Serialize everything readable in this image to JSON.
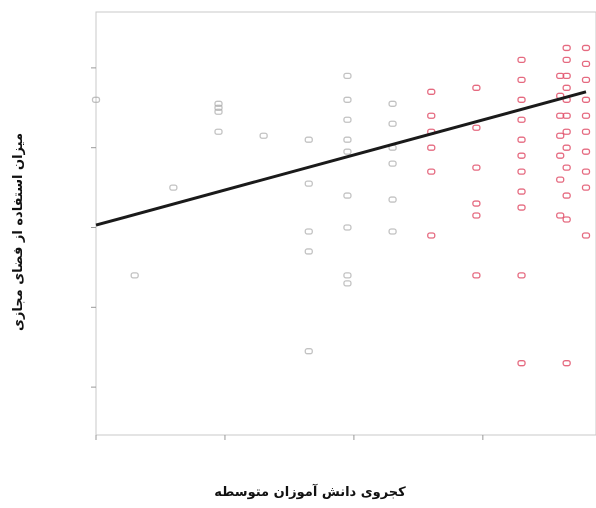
{
  "chart_data": {
    "type": "scatter",
    "title": "",
    "xlabel": "کجروی دانش آموزان متوسطه",
    "ylabel": "میزان استفاده از فضای مجازی",
    "xlim": [
      1,
      4.8
    ],
    "ylim": [
      1,
      6.2
    ],
    "x_ticks": [
      "",
      "",
      "",
      "",
      "",
      ""
    ],
    "y_ticks": [
      "",
      "",
      "",
      "",
      "",
      ""
    ],
    "grid": false,
    "colors": {
      "point_low": "#a8a8a8",
      "point_high": "#e0506a",
      "line": "#1a1a1a"
    },
    "fit_line": {
      "x": [
        1,
        4.8
      ],
      "y": [
        3.63,
        5.3
      ]
    },
    "points": [
      {
        "x": 1.0,
        "y": 5.2
      },
      {
        "x": 1.3,
        "y": 3.0
      },
      {
        "x": 1.6,
        "y": 4.1
      },
      {
        "x": 1.95,
        "y": 5.1
      },
      {
        "x": 1.95,
        "y": 5.05
      },
      {
        "x": 1.95,
        "y": 5.15
      },
      {
        "x": 1.95,
        "y": 4.8
      },
      {
        "x": 2.3,
        "y": 4.75
      },
      {
        "x": 2.65,
        "y": 4.7
      },
      {
        "x": 2.65,
        "y": 4.15
      },
      {
        "x": 2.65,
        "y": 3.55
      },
      {
        "x": 2.65,
        "y": 3.3
      },
      {
        "x": 2.65,
        "y": 2.05
      },
      {
        "x": 2.95,
        "y": 5.5
      },
      {
        "x": 2.95,
        "y": 5.2
      },
      {
        "x": 2.95,
        "y": 4.95
      },
      {
        "x": 2.95,
        "y": 4.7
      },
      {
        "x": 2.95,
        "y": 4.55
      },
      {
        "x": 2.95,
        "y": 4.0
      },
      {
        "x": 2.95,
        "y": 3.6
      },
      {
        "x": 2.95,
        "y": 3.0
      },
      {
        "x": 2.95,
        "y": 2.9
      },
      {
        "x": 3.3,
        "y": 5.15
      },
      {
        "x": 3.3,
        "y": 4.9
      },
      {
        "x": 3.3,
        "y": 4.6
      },
      {
        "x": 3.3,
        "y": 4.4
      },
      {
        "x": 3.3,
        "y": 3.95
      },
      {
        "x": 3.3,
        "y": 3.55
      },
      {
        "x": 3.6,
        "y": 5.3
      },
      {
        "x": 3.6,
        "y": 5.0
      },
      {
        "x": 3.6,
        "y": 4.8
      },
      {
        "x": 3.6,
        "y": 4.6
      },
      {
        "x": 3.6,
        "y": 4.3
      },
      {
        "x": 3.6,
        "y": 3.5
      },
      {
        "x": 3.95,
        "y": 5.35
      },
      {
        "x": 3.95,
        "y": 4.85
      },
      {
        "x": 3.95,
        "y": 4.35
      },
      {
        "x": 3.95,
        "y": 3.9
      },
      {
        "x": 3.95,
        "y": 3.75
      },
      {
        "x": 3.95,
        "y": 3.0
      },
      {
        "x": 4.3,
        "y": 5.7
      },
      {
        "x": 4.3,
        "y": 5.45
      },
      {
        "x": 4.3,
        "y": 5.2
      },
      {
        "x": 4.3,
        "y": 4.95
      },
      {
        "x": 4.3,
        "y": 4.7
      },
      {
        "x": 4.3,
        "y": 4.5
      },
      {
        "x": 4.3,
        "y": 4.3
      },
      {
        "x": 4.3,
        "y": 4.05
      },
      {
        "x": 4.3,
        "y": 3.85
      },
      {
        "x": 4.3,
        "y": 3.0
      },
      {
        "x": 4.3,
        "y": 1.9
      },
      {
        "x": 4.6,
        "y": 5.5
      },
      {
        "x": 4.6,
        "y": 5.25
      },
      {
        "x": 4.6,
        "y": 5.0
      },
      {
        "x": 4.6,
        "y": 4.75
      },
      {
        "x": 4.6,
        "y": 4.5
      },
      {
        "x": 4.6,
        "y": 4.2
      },
      {
        "x": 4.6,
        "y": 3.75
      },
      {
        "x": 4.65,
        "y": 5.85
      },
      {
        "x": 4.65,
        "y": 5.7
      },
      {
        "x": 4.65,
        "y": 5.5
      },
      {
        "x": 4.65,
        "y": 5.35
      },
      {
        "x": 4.65,
        "y": 5.2
      },
      {
        "x": 4.65,
        "y": 5.0
      },
      {
        "x": 4.65,
        "y": 4.8
      },
      {
        "x": 4.65,
        "y": 4.6
      },
      {
        "x": 4.65,
        "y": 4.35
      },
      {
        "x": 4.65,
        "y": 4.0
      },
      {
        "x": 4.65,
        "y": 3.7
      },
      {
        "x": 4.65,
        "y": 1.9
      },
      {
        "x": 4.8,
        "y": 5.85
      },
      {
        "x": 4.8,
        "y": 5.65
      },
      {
        "x": 4.8,
        "y": 5.45
      },
      {
        "x": 4.8,
        "y": 5.2
      },
      {
        "x": 4.8,
        "y": 5.0
      },
      {
        "x": 4.8,
        "y": 4.8
      },
      {
        "x": 4.8,
        "y": 4.55
      },
      {
        "x": 4.8,
        "y": 4.3
      },
      {
        "x": 4.8,
        "y": 4.1
      },
      {
        "x": 4.8,
        "y": 3.5
      }
    ]
  }
}
